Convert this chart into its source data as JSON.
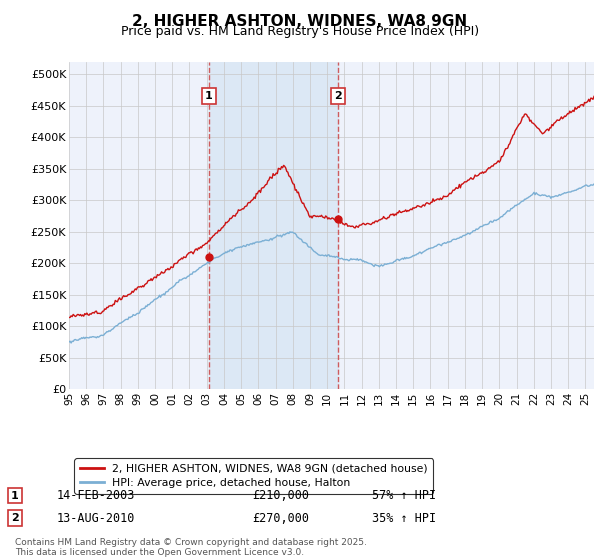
{
  "title": "2, HIGHER ASHTON, WIDNES, WA8 9GN",
  "subtitle": "Price paid vs. HM Land Registry's House Price Index (HPI)",
  "title_fontsize": 11,
  "subtitle_fontsize": 9,
  "ylim": [
    0,
    520000
  ],
  "yticks": [
    0,
    50000,
    100000,
    150000,
    200000,
    250000,
    300000,
    350000,
    400000,
    450000,
    500000
  ],
  "ytick_labels": [
    "£0",
    "£50K",
    "£100K",
    "£150K",
    "£200K",
    "£250K",
    "£300K",
    "£350K",
    "£400K",
    "£450K",
    "£500K"
  ],
  "xlim_start": 1995.0,
  "xlim_end": 2025.5,
  "hpi_color": "#7bafd4",
  "price_color": "#cc1111",
  "sale1_year": 2003.12,
  "sale1_price": 210000,
  "sale1_label": "1",
  "sale1_date": "14-FEB-2003",
  "sale1_amount": "£210,000",
  "sale1_pct": "57% ↑ HPI",
  "sale2_year": 2010.62,
  "sale2_price": 270000,
  "sale2_label": "2",
  "sale2_date": "13-AUG-2010",
  "sale2_amount": "£270,000",
  "sale2_pct": "35% ↑ HPI",
  "background_color": "#ffffff",
  "plot_bg_color": "#eef2fb",
  "grid_color": "#c8c8c8",
  "legend_label_price": "2, HIGHER ASHTON, WIDNES, WA8 9GN (detached house)",
  "legend_label_hpi": "HPI: Average price, detached house, Halton",
  "footnote": "Contains HM Land Registry data © Crown copyright and database right 2025.\nThis data is licensed under the Open Government Licence v3.0.",
  "xticks": [
    1995,
    1996,
    1997,
    1998,
    1999,
    2000,
    2001,
    2002,
    2003,
    2004,
    2005,
    2006,
    2007,
    2008,
    2009,
    2010,
    2011,
    2012,
    2013,
    2014,
    2015,
    2016,
    2017,
    2018,
    2019,
    2020,
    2021,
    2022,
    2023,
    2024,
    2025
  ],
  "span_color": "#dce8f5",
  "vline_color": "#cc4444"
}
